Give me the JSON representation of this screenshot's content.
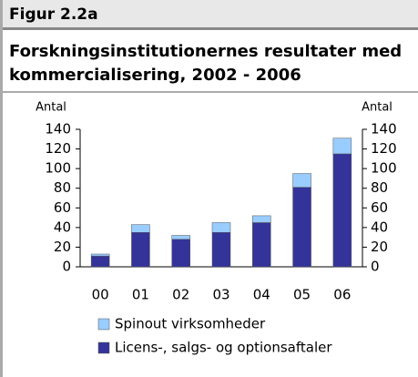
{
  "header": "Figur 2.2a",
  "chart_data": {
    "type": "stacked_bar",
    "title": [
      "Forskningsinstitutionernes resultater med",
      "kommercialisering, 2002 - 2006"
    ],
    "ylabel": "Antal",
    "y2label": "Antal",
    "categories": [
      "00",
      "01",
      "02",
      "03",
      "04",
      "05",
      "06"
    ],
    "series": [
      {
        "name": "Licens-, salgs- og optionsaftaler",
        "color": "#333399",
        "values": [
          11,
          35,
          28,
          35,
          45,
          81,
          115
        ]
      },
      {
        "name": "Spinout virksomheder",
        "color": "#99ccff",
        "values": [
          2,
          8,
          4,
          10,
          7,
          14,
          16
        ]
      }
    ],
    "ylim": [
      0,
      140
    ],
    "yticks": [
      0,
      20,
      40,
      60,
      80,
      100,
      120,
      140
    ],
    "y2lim": [
      0,
      140
    ],
    "y2ticks": [
      0,
      20,
      40,
      60,
      80,
      100,
      120,
      140
    ]
  }
}
